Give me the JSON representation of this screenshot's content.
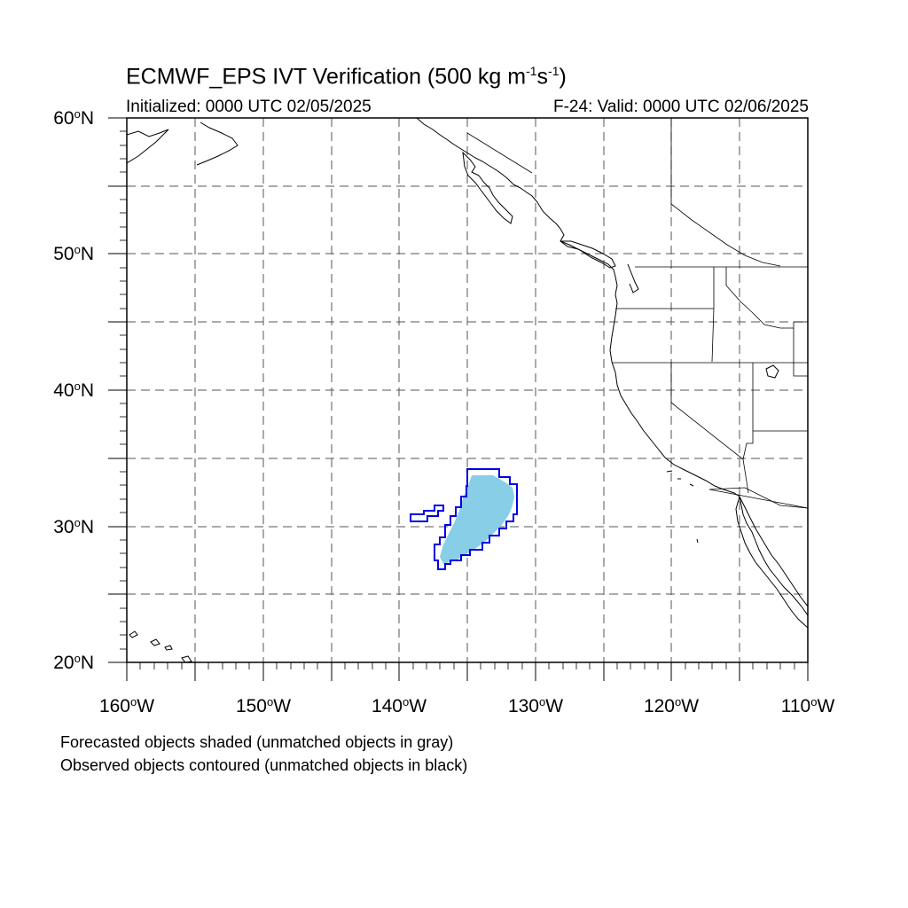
{
  "title": {
    "main": "ECMWF_EPS IVT Verification (500 kg m",
    "exp1": "-1",
    "mid": "s",
    "exp2": "-1",
    "close": ")"
  },
  "initialized": "Initialized: 0000 UTC 02/05/2025",
  "valid": "F-24: Valid: 0000 UTC 02/06/2025",
  "lat_labels": [
    "60",
    "50",
    "40",
    "30",
    "20"
  ],
  "lat_suffix": "N",
  "lon_labels": [
    "160",
    "150",
    "140",
    "130",
    "120",
    "110"
  ],
  "lon_suffix": "W",
  "degree_symbol": "o",
  "caption": {
    "line1": "Forecasted objects shaded (unmatched objects in gray)",
    "line2": "Observed objects contoured (unmatched objects in black)"
  },
  "map": {
    "lon_range": [
      -160,
      -110
    ],
    "lat_range": [
      20,
      60
    ],
    "gridlines": "dashed every 5 degrees",
    "forecast_object_color": "#87CEE6",
    "observed_object_color": "#0000E6",
    "coastline_color": "#000000"
  }
}
